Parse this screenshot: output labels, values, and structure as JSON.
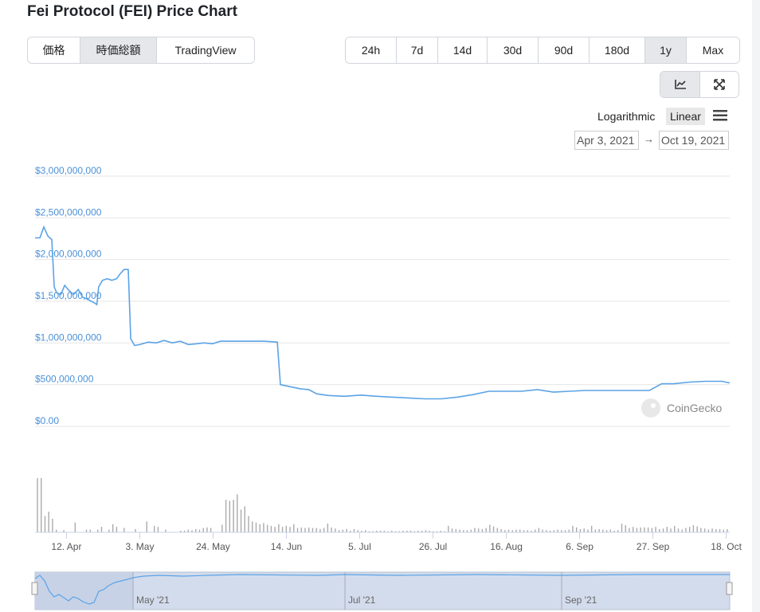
{
  "title": "Fei Protocol (FEI) Price Chart",
  "type_tabs": [
    {
      "label": "価格",
      "active": false
    },
    {
      "label": "時価総額",
      "active": true
    },
    {
      "label": "TradingView",
      "active": false
    }
  ],
  "range_tabs": [
    {
      "label": "24h"
    },
    {
      "label": "7d"
    },
    {
      "label": "14d"
    },
    {
      "label": "30d"
    },
    {
      "label": "90d"
    },
    {
      "label": "180d"
    },
    {
      "label": "1y",
      "active": true
    },
    {
      "label": "Max"
    }
  ],
  "view_buttons": [
    {
      "icon": "line-chart-icon",
      "active": true
    },
    {
      "icon": "expand-icon"
    }
  ],
  "scale": {
    "log": "Logarithmic",
    "linear": "Linear",
    "menu_icon": "hamburger-menu-icon"
  },
  "date_range": {
    "from": "Apr 3, 2021",
    "arrow": "→",
    "to": "Oct 19, 2021"
  },
  "watermark": "CoinGecko",
  "navigator": {
    "labels": [
      "May '21",
      "Jul '21",
      "Sep '21"
    ]
  },
  "colors": {
    "line": "#5ba3e6",
    "volume": "#aaaaaa",
    "grid": "#e6e6e6",
    "axis_label": "#4a90d9",
    "navigator_fill": "#cfd9ea"
  },
  "chart_data": {
    "type": "line",
    "title": "Market Cap",
    "x_unit": "days since Apr 3, 2021",
    "xlim": [
      0,
      199
    ],
    "ylim": [
      0,
      3000000000
    ],
    "yticks": [
      {
        "v": 0,
        "label": "$0.00"
      },
      {
        "v": 500000000,
        "label": "$500,000,000"
      },
      {
        "v": 1000000000,
        "label": "$1,000,000,000"
      },
      {
        "v": 1500000000,
        "label": "$1,500,000,000"
      },
      {
        "v": 2000000000,
        "label": "$2,000,000,000"
      },
      {
        "v": 2500000000,
        "label": "$2,500,000,000"
      },
      {
        "v": 3000000000,
        "label": "$3,000,000,000"
      }
    ],
    "xticks": [
      {
        "d": 9,
        "label": "12. Apr"
      },
      {
        "d": 30,
        "label": "3. May"
      },
      {
        "d": 51,
        "label": "24. May"
      },
      {
        "d": 72,
        "label": "14. Jun"
      },
      {
        "d": 93,
        "label": "5. Jul"
      },
      {
        "d": 114,
        "label": "26. Jul"
      },
      {
        "d": 135,
        "label": "16. Aug"
      },
      {
        "d": 156,
        "label": "6. Sep"
      },
      {
        "d": 177,
        "label": "27. Sep"
      },
      {
        "d": 198,
        "label": "18. Oct"
      }
    ],
    "series": [
      {
        "name": "Market Cap (USD billions)",
        "points": [
          [
            0,
            2.26
          ],
          [
            1.4,
            2.26
          ],
          [
            2.5,
            2.39
          ],
          [
            3.7,
            2.28
          ],
          [
            4.8,
            2.24
          ],
          [
            5.5,
            1.67
          ],
          [
            6.2,
            1.6
          ],
          [
            7.4,
            1.58
          ],
          [
            8.5,
            1.69
          ],
          [
            9.7,
            1.63
          ],
          [
            11,
            1.58
          ],
          [
            12.4,
            1.64
          ],
          [
            13.6,
            1.55
          ],
          [
            14.7,
            1.53
          ],
          [
            17,
            1.48
          ],
          [
            17.7,
            1.46
          ],
          [
            18.2,
            1.67
          ],
          [
            19.3,
            1.75
          ],
          [
            20.7,
            1.77
          ],
          [
            22,
            1.75
          ],
          [
            23.4,
            1.77
          ],
          [
            24.4,
            1.83
          ],
          [
            25.5,
            1.88
          ],
          [
            26.7,
            1.88
          ],
          [
            27.4,
            1.05
          ],
          [
            28.5,
            0.97
          ],
          [
            30,
            0.98
          ],
          [
            32.4,
            1.01
          ],
          [
            34.7,
            1.0
          ],
          [
            37,
            1.03
          ],
          [
            39.3,
            1.0
          ],
          [
            41.6,
            1.02
          ],
          [
            43.9,
            0.98
          ],
          [
            46.2,
            0.99
          ],
          [
            48.5,
            1.0
          ],
          [
            50.8,
            0.99
          ],
          [
            53.1,
            1.02
          ],
          [
            58.9,
            1.02
          ],
          [
            65.7,
            1.02
          ],
          [
            69.4,
            1.01
          ],
          [
            70.3,
            0.5
          ],
          [
            72.6,
            0.48
          ],
          [
            76,
            0.45
          ],
          [
            78.4,
            0.44
          ],
          [
            80.7,
            0.39
          ],
          [
            84,
            0.37
          ],
          [
            88.7,
            0.36
          ],
          [
            93.3,
            0.375
          ],
          [
            97.9,
            0.36
          ],
          [
            102.5,
            0.35
          ],
          [
            107,
            0.34
          ],
          [
            111.7,
            0.33
          ],
          [
            116.3,
            0.33
          ],
          [
            120.9,
            0.35
          ],
          [
            125.5,
            0.38
          ],
          [
            130,
            0.42
          ],
          [
            134.7,
            0.42
          ],
          [
            139.3,
            0.42
          ],
          [
            143.9,
            0.44
          ],
          [
            148.5,
            0.41
          ],
          [
            153,
            0.42
          ],
          [
            157.7,
            0.43
          ],
          [
            171.5,
            0.43
          ],
          [
            176,
            0.43
          ],
          [
            179.5,
            0.51
          ],
          [
            183,
            0.51
          ],
          [
            187.6,
            0.53
          ],
          [
            192,
            0.54
          ],
          [
            196.8,
            0.54
          ],
          [
            199,
            0.52
          ]
        ]
      }
    ],
    "volume_relative": [
      100,
      100,
      30,
      38,
      25,
      5,
      0,
      4,
      0,
      0,
      18,
      0,
      0,
      5,
      5,
      0,
      5,
      10,
      0,
      5,
      15,
      10,
      0,
      8,
      0,
      0,
      6,
      0,
      0,
      20,
      0,
      12,
      10,
      0,
      5,
      0,
      0,
      0,
      3,
      3,
      5,
      4,
      6,
      5,
      8,
      9,
      8,
      0,
      0,
      14,
      60,
      58,
      60,
      70,
      42,
      48,
      30,
      20,
      18,
      15,
      17,
      14,
      12,
      10,
      15,
      10,
      12,
      10,
      15,
      8,
      9,
      8,
      9,
      8,
      8,
      6,
      8,
      16,
      9,
      7,
      4,
      5,
      6,
      3,
      6,
      4,
      3,
      4,
      2,
      2,
      3,
      3,
      3,
      2,
      3,
      2,
      2,
      3,
      3,
      3,
      2,
      3,
      3,
      4,
      3,
      2,
      2,
      3,
      2,
      12,
      7,
      6,
      5,
      4,
      4,
      5,
      8,
      7,
      6,
      8,
      14,
      11,
      8,
      6,
      4,
      5,
      4,
      5,
      5,
      4,
      4,
      3,
      5,
      8,
      5,
      4,
      3,
      4,
      5,
      4,
      4,
      5,
      12,
      9,
      6,
      7,
      5,
      12,
      5,
      6,
      5,
      4,
      5,
      3,
      4,
      16,
      13,
      8,
      10,
      8,
      9,
      9,
      9,
      8,
      10,
      6,
      7,
      10,
      7,
      12,
      7,
      5,
      8,
      10,
      13,
      11,
      8,
      7,
      5,
      7,
      6,
      6,
      5,
      6
    ]
  }
}
